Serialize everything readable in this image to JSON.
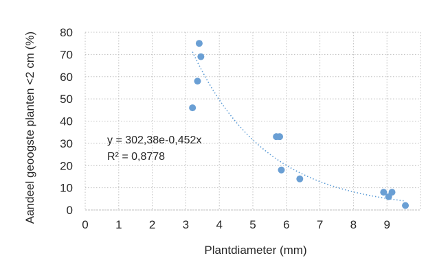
{
  "chart_data": {
    "type": "scatter",
    "title": "",
    "xlabel": "Plantdiameter (mm)",
    "ylabel": "Aandeel geoogste planten <2 cm (%)",
    "xlim": [
      0,
      10
    ],
    "ylim": [
      0,
      80
    ],
    "x_ticks": [
      "0",
      "1",
      "2",
      "3",
      "4",
      "5",
      "6",
      "7",
      "8",
      "9"
    ],
    "y_ticks": [
      "0",
      "10",
      "20",
      "30",
      "40",
      "50",
      "60",
      "70",
      "80"
    ],
    "grid": true,
    "series": [
      {
        "color": "#6a9fd4",
        "points": [
          {
            "x": 3.2,
            "y": 46
          },
          {
            "x": 3.35,
            "y": 58
          },
          {
            "x": 3.4,
            "y": 75
          },
          {
            "x": 3.45,
            "y": 69
          },
          {
            "x": 5.7,
            "y": 33
          },
          {
            "x": 5.8,
            "y": 33
          },
          {
            "x": 5.85,
            "y": 18
          },
          {
            "x": 6.4,
            "y": 14
          },
          {
            "x": 8.9,
            "y": 8
          },
          {
            "x": 9.05,
            "y": 6
          },
          {
            "x": 9.15,
            "y": 8
          },
          {
            "x": 9.55,
            "y": 2
          }
        ]
      }
    ],
    "trendline": {
      "type": "exponential",
      "a": 302.38,
      "b": -0.452,
      "x_range": [
        3.2,
        9.55
      ],
      "color": "#5b9bd5"
    },
    "annotations": {
      "equation": "y = 302,38e-0,452x",
      "r_squared": "R² = 0,8778"
    }
  }
}
